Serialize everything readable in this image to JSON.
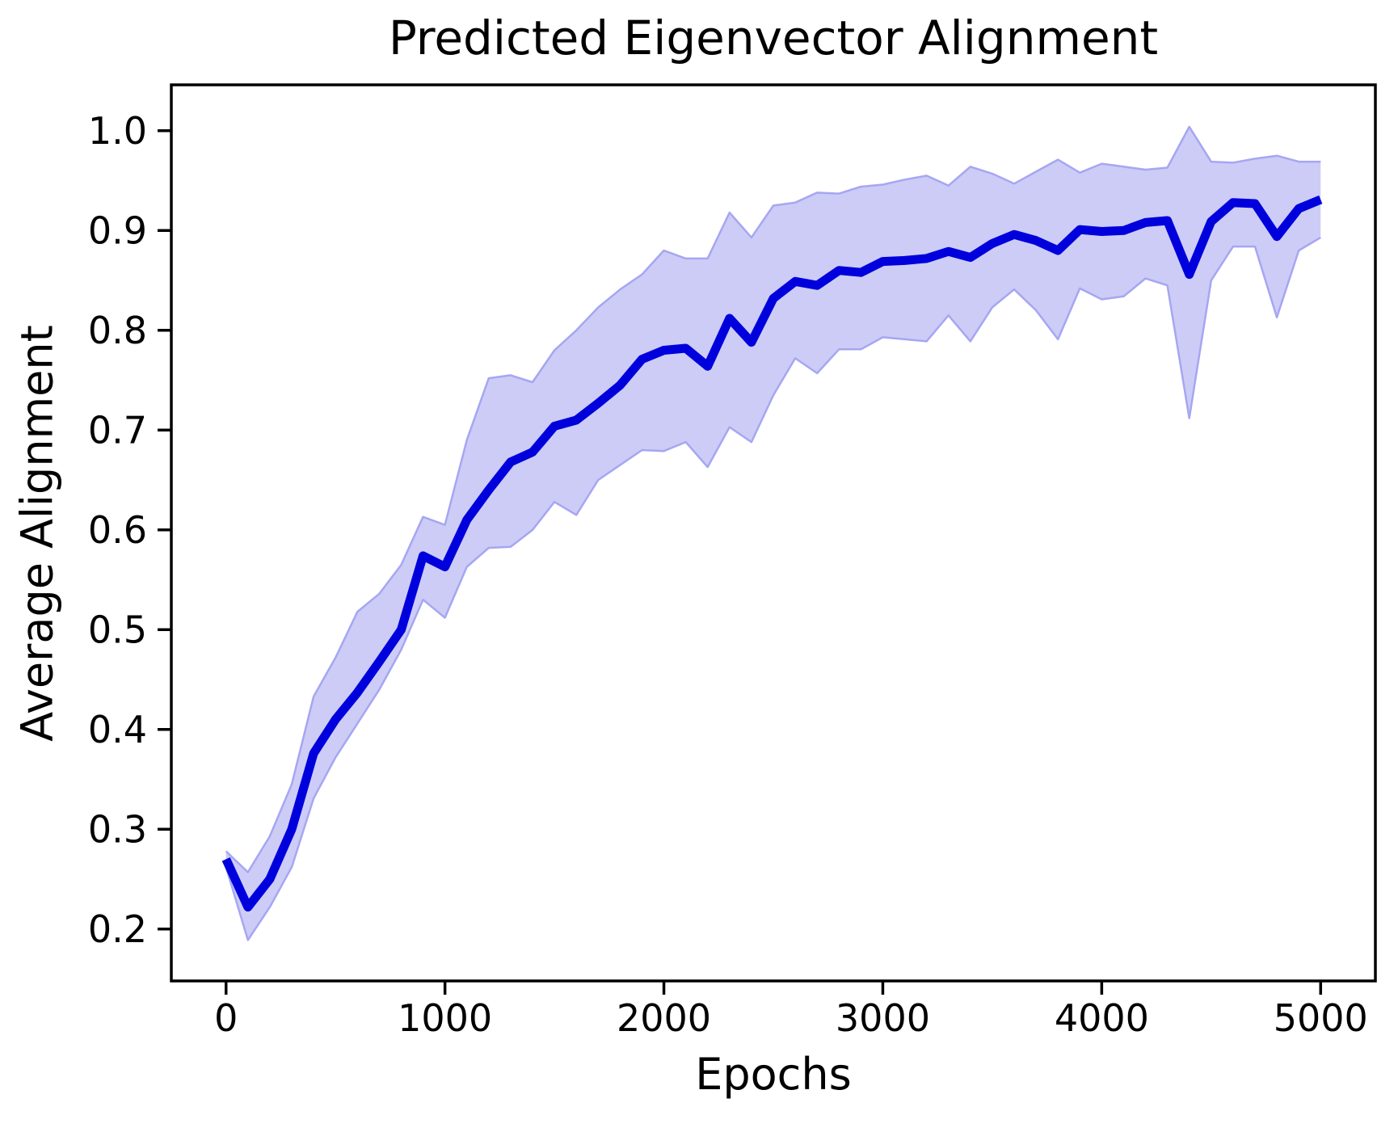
{
  "figure": {
    "title": "Predicted Eigenvector Alignment",
    "xlabel": "Epochs",
    "ylabel": "Average Alignment"
  },
  "axes": {
    "xlim": [
      -250,
      5250
    ],
    "ylim": [
      0.148,
      1.046
    ],
    "xticks": [
      0,
      1000,
      2000,
      3000,
      4000,
      5000
    ],
    "yticks": [
      0.2,
      0.3,
      0.4,
      0.5,
      0.6,
      0.7,
      0.8,
      0.9,
      1.0
    ],
    "grid": false
  },
  "style": {
    "line_color": "#0000dd",
    "band_fill": "#ccccf7",
    "band_edge": "#a6a6f2",
    "spine_color": "#000000",
    "text_color": "#000000"
  },
  "chart_data": {
    "type": "line",
    "title": "Predicted Eigenvector Alignment",
    "xlabel": "Epochs",
    "ylabel": "Average Alignment",
    "legend": "none",
    "x": [
      0,
      100,
      200,
      300,
      400,
      500,
      600,
      700,
      800,
      900,
      1000,
      1100,
      1200,
      1300,
      1400,
      1500,
      1600,
      1700,
      1800,
      1900,
      2000,
      2100,
      2200,
      2300,
      2400,
      2500,
      2600,
      2700,
      2800,
      2900,
      3000,
      3100,
      3200,
      3300,
      3400,
      3500,
      3600,
      3700,
      3800,
      3900,
      4000,
      4100,
      4200,
      4300,
      4400,
      4500,
      4600,
      4700,
      4800,
      4900,
      5000
    ],
    "series": [
      {
        "name": "Average Alignment (mean)",
        "values": [
          0.27,
          0.222,
          0.25,
          0.3,
          0.376,
          0.41,
          0.437,
          0.468,
          0.5,
          0.574,
          0.563,
          0.61,
          0.64,
          0.668,
          0.678,
          0.704,
          0.71,
          0.727,
          0.745,
          0.771,
          0.78,
          0.782,
          0.764,
          0.812,
          0.788,
          0.832,
          0.849,
          0.845,
          0.86,
          0.858,
          0.869,
          0.87,
          0.872,
          0.879,
          0.873,
          0.887,
          0.896,
          0.89,
          0.88,
          0.901,
          0.899,
          0.9,
          0.908,
          0.91,
          0.856,
          0.909,
          0.928,
          0.927,
          0.894,
          0.922,
          0.931
        ]
      }
    ],
    "band": {
      "name": "confidence band",
      "lower": [
        0.262,
        0.189,
        0.222,
        0.262,
        0.331,
        0.372,
        0.406,
        0.44,
        0.48,
        0.53,
        0.512,
        0.563,
        0.582,
        0.583,
        0.6,
        0.628,
        0.615,
        0.65,
        0.665,
        0.68,
        0.679,
        0.688,
        0.663,
        0.703,
        0.688,
        0.735,
        0.772,
        0.757,
        0.781,
        0.781,
        0.793,
        0.791,
        0.789,
        0.815,
        0.789,
        0.823,
        0.841,
        0.82,
        0.791,
        0.842,
        0.831,
        0.834,
        0.852,
        0.845,
        0.712,
        0.85,
        0.884,
        0.884,
        0.813,
        0.88,
        0.893
      ],
      "upper": [
        0.278,
        0.257,
        0.293,
        0.345,
        0.433,
        0.472,
        0.518,
        0.536,
        0.565,
        0.613,
        0.605,
        0.69,
        0.752,
        0.755,
        0.748,
        0.78,
        0.8,
        0.823,
        0.841,
        0.856,
        0.88,
        0.872,
        0.872,
        0.918,
        0.893,
        0.925,
        0.928,
        0.938,
        0.937,
        0.944,
        0.946,
        0.951,
        0.955,
        0.945,
        0.964,
        0.957,
        0.947,
        0.959,
        0.971,
        0.958,
        0.967,
        0.964,
        0.961,
        0.963,
        1.004,
        0.969,
        0.968,
        0.972,
        0.975,
        0.969,
        0.969
      ]
    }
  }
}
